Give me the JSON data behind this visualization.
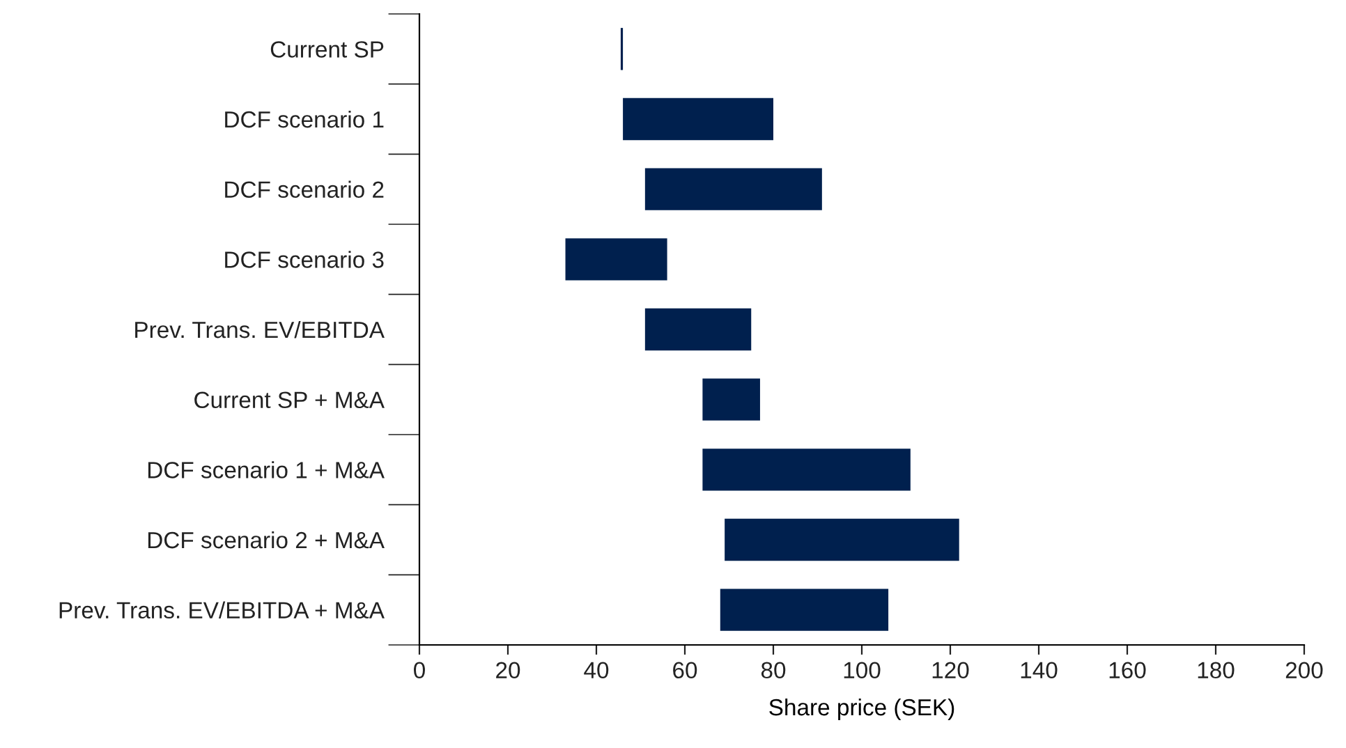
{
  "chart_data": {
    "type": "bar",
    "orientation": "horizontal",
    "xlabel": "Share price (SEK)",
    "categories": [
      "Current SP",
      "DCF scenario 1",
      "DCF scenario 2",
      "DCF scenario 3",
      "Prev. Trans. EV/EBITDA",
      "Current SP + M&A",
      "DCF scenario 1 + M&A",
      "DCF scenario 2 + M&A",
      "Prev. Trans. EV/EBITDA + M&A"
    ],
    "base": [
      45.5,
      46,
      51,
      33,
      51,
      64,
      64,
      69,
      68
    ],
    "values": [
      0.5,
      34,
      40,
      23,
      24,
      13,
      47,
      53,
      38
    ],
    "color": "#00204e",
    "xlim": [
      0,
      200
    ],
    "xticks": [
      0,
      20,
      40,
      60,
      80,
      100,
      120,
      140,
      160,
      180,
      200
    ],
    "grid": false,
    "legend": false
  }
}
